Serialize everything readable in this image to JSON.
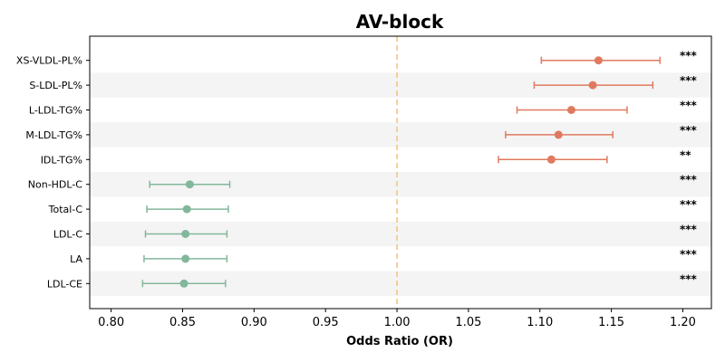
{
  "chart_data": {
    "type": "forest",
    "title": "AV-block",
    "xlabel": "Odds Ratio (OR)",
    "xlim": [
      0.785,
      1.22
    ],
    "xticks": [
      "0.80",
      "0.85",
      "0.90",
      "0.95",
      "1.00",
      "1.05",
      "1.10",
      "1.15",
      "1.20"
    ],
    "reference_line": {
      "x": 1.0,
      "style": "dashed",
      "color": "#f5c27a"
    },
    "alternating_row_shading": true,
    "colors": {
      "above": "#e07a5f",
      "below": "#82b79b"
    },
    "rows": [
      {
        "label": "XS-VLDL-PL%",
        "or": 1.141,
        "lo": 1.101,
        "hi": 1.184,
        "sig": "***"
      },
      {
        "label": "S-LDL-PL%",
        "or": 1.137,
        "lo": 1.096,
        "hi": 1.179,
        "sig": "***"
      },
      {
        "label": "L-LDL-TG%",
        "or": 1.122,
        "lo": 1.084,
        "hi": 1.161,
        "sig": "***"
      },
      {
        "label": "M-LDL-TG%",
        "or": 1.113,
        "lo": 1.076,
        "hi": 1.151,
        "sig": "***"
      },
      {
        "label": "IDL-TG%",
        "or": 1.108,
        "lo": 1.071,
        "hi": 1.147,
        "sig": "**"
      },
      {
        "label": "Non-HDL-C",
        "or": 0.855,
        "lo": 0.827,
        "hi": 0.883,
        "sig": "***"
      },
      {
        "label": "Total-C",
        "or": 0.853,
        "lo": 0.825,
        "hi": 0.882,
        "sig": "***"
      },
      {
        "label": "LDL-C",
        "or": 0.852,
        "lo": 0.824,
        "hi": 0.881,
        "sig": "***"
      },
      {
        "label": "LA",
        "or": 0.852,
        "lo": 0.823,
        "hi": 0.881,
        "sig": "***"
      },
      {
        "label": "LDL-CE",
        "or": 0.851,
        "lo": 0.822,
        "hi": 0.88,
        "sig": "***"
      }
    ]
  }
}
